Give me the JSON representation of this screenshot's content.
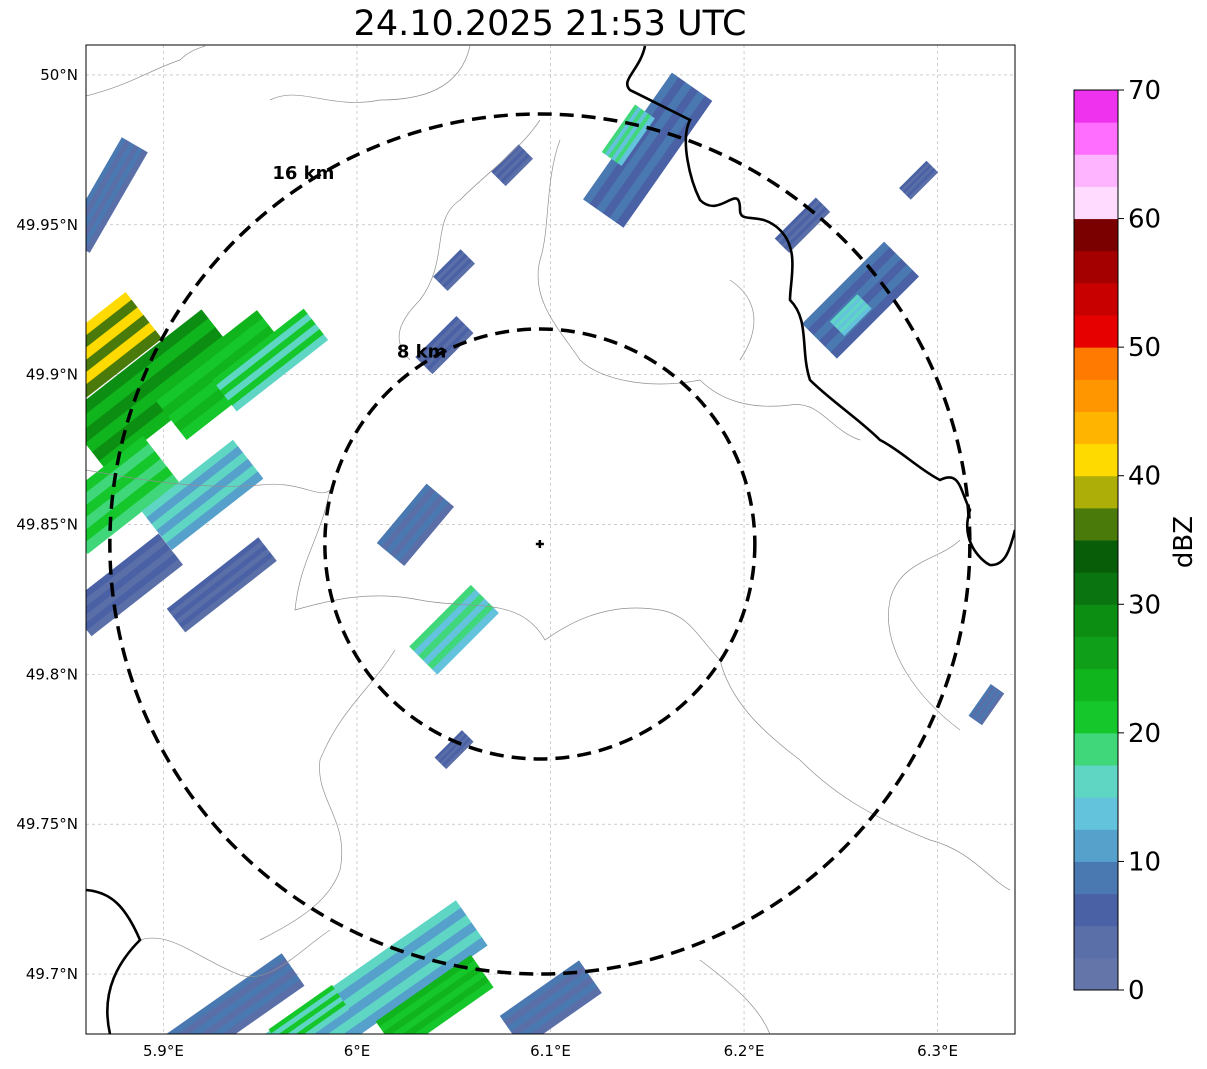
{
  "title": "24.10.2025 21:53 UTC",
  "map": {
    "lon_range": [
      5.86,
      6.34
    ],
    "lat_range": [
      49.68,
      50.01
    ],
    "x_ticks": [
      {
        "value": 5.9,
        "label": "5.9°E"
      },
      {
        "value": 6.0,
        "label": "6°E"
      },
      {
        "value": 6.1,
        "label": "6.1°E"
      },
      {
        "value": 6.2,
        "label": "6.2°E"
      },
      {
        "value": 6.3,
        "label": "6.3°E"
      }
    ],
    "y_ticks": [
      {
        "value": 50.0,
        "label": "50°N"
      },
      {
        "value": 49.95,
        "label": "49.95°N"
      },
      {
        "value": 49.9,
        "label": "49.9°N"
      },
      {
        "value": 49.85,
        "label": "49.85°N"
      },
      {
        "value": 49.8,
        "label": "49.8°N"
      },
      {
        "value": 49.75,
        "label": "49.75°N"
      },
      {
        "value": 49.7,
        "label": "49.7°N"
      }
    ],
    "grid": true,
    "center": {
      "lon": 6.0945,
      "lat": 49.8435
    },
    "range_rings": [
      {
        "label": "8 km"
      },
      {
        "label": "16 km"
      }
    ]
  },
  "colorbar": {
    "label": "dBZ",
    "min": 0,
    "max": 70,
    "tick_values": [
      0,
      10,
      20,
      30,
      40,
      50,
      60,
      70
    ],
    "colors": [
      "#6475aa",
      "#5a6ea8",
      "#4a62a5",
      "#4a78b0",
      "#56a0cc",
      "#64c3dc",
      "#5fd6c4",
      "#3fd77a",
      "#16c72c",
      "#10b41c",
      "#109f18",
      "#0c8e13",
      "#0a7410",
      "#085d08",
      "#4a7a0a",
      "#aeae08",
      "#ffda00",
      "#ffb400",
      "#ff9600",
      "#ff7a00",
      "#e60000",
      "#c80000",
      "#a50000",
      "#7a0000",
      "#ffdcff",
      "#ffb4ff",
      "#ff6eff",
      "#ee32ee"
    ]
  },
  "echo_cells": [
    {
      "name": "west-cluster-1",
      "lon": 5.895,
      "lat": 49.895,
      "angle": -38,
      "len": 0.09,
      "w": 0.035,
      "dbz": 26
    },
    {
      "name": "west-cluster-2",
      "lon": 5.93,
      "lat": 49.9,
      "angle": -38,
      "len": 0.07,
      "w": 0.03,
      "dbz": 22
    },
    {
      "name": "west-cluster-3",
      "lon": 5.87,
      "lat": 49.91,
      "angle": -38,
      "len": 0.05,
      "w": 0.03,
      "dbz": 38
    },
    {
      "name": "west-cluster-4",
      "lon": 5.875,
      "lat": 49.86,
      "angle": -38,
      "len": 0.06,
      "w": 0.03,
      "dbz": 20
    },
    {
      "name": "west-cluster-5",
      "lon": 5.92,
      "lat": 49.86,
      "angle": -38,
      "len": 0.06,
      "w": 0.025,
      "dbz": 14
    },
    {
      "name": "west-cluster-6",
      "lon": 5.88,
      "lat": 49.83,
      "angle": -38,
      "len": 0.06,
      "w": 0.02,
      "dbz": 5
    },
    {
      "name": "west-cluster-7",
      "lon": 5.93,
      "lat": 49.83,
      "angle": -38,
      "len": 0.06,
      "w": 0.015,
      "dbz": 5
    },
    {
      "name": "west-cluster-8",
      "lon": 5.87,
      "lat": 49.96,
      "angle": -60,
      "len": 0.06,
      "w": 0.015,
      "dbz": 6
    },
    {
      "name": "west-cluster-9",
      "lon": 5.955,
      "lat": 49.905,
      "angle": -38,
      "len": 0.06,
      "w": 0.02,
      "dbz": 18
    },
    {
      "name": "central-cell-1",
      "lon": 6.03,
      "lat": 49.85,
      "angle": -50,
      "len": 0.04,
      "w": 0.018,
      "dbz": 6
    },
    {
      "name": "central-cell-2",
      "lon": 6.05,
      "lat": 49.815,
      "angle": -45,
      "len": 0.045,
      "w": 0.02,
      "dbz": 16
    },
    {
      "name": "central-cell-3",
      "lon": 6.045,
      "lat": 49.91,
      "angle": -45,
      "len": 0.03,
      "w": 0.012,
      "dbz": 5
    },
    {
      "name": "central-cell-4",
      "lon": 6.05,
      "lat": 49.935,
      "angle": -45,
      "len": 0.02,
      "w": 0.01,
      "dbz": 5
    },
    {
      "name": "central-cell-5",
      "lon": 6.05,
      "lat": 49.775,
      "angle": -45,
      "len": 0.02,
      "w": 0.008,
      "dbz": 5
    },
    {
      "name": "central-cell-6",
      "lon": 6.08,
      "lat": 49.97,
      "angle": -45,
      "len": 0.02,
      "w": 0.01,
      "dbz": 5
    },
    {
      "name": "ne-band-1",
      "lon": 6.15,
      "lat": 49.975,
      "angle": -55,
      "len": 0.08,
      "w": 0.025,
      "dbz": 7
    },
    {
      "name": "ne-band-2",
      "lon": 6.14,
      "lat": 49.98,
      "angle": -55,
      "len": 0.03,
      "w": 0.012,
      "dbz": 16
    },
    {
      "name": "ne-band-3",
      "lon": 6.26,
      "lat": 49.925,
      "angle": -45,
      "len": 0.06,
      "w": 0.025,
      "dbz": 7
    },
    {
      "name": "ne-band-4",
      "lon": 6.255,
      "lat": 49.92,
      "angle": -45,
      "len": 0.02,
      "w": 0.01,
      "dbz": 15
    },
    {
      "name": "ne-band-5",
      "lon": 6.23,
      "lat": 49.95,
      "angle": -45,
      "len": 0.03,
      "w": 0.01,
      "dbz": 5
    },
    {
      "name": "ne-band-6",
      "lon": 6.29,
      "lat": 49.965,
      "angle": -45,
      "len": 0.02,
      "w": 0.008,
      "dbz": 5
    },
    {
      "name": "east-cell-1",
      "lon": 6.325,
      "lat": 49.79,
      "angle": -55,
      "len": 0.02,
      "w": 0.008,
      "dbz": 6
    },
    {
      "name": "south-band-1",
      "lon": 6.01,
      "lat": 49.695,
      "angle": -35,
      "len": 0.12,
      "w": 0.028,
      "dbz": 14
    },
    {
      "name": "south-band-2",
      "lon": 6.04,
      "lat": 49.69,
      "angle": -35,
      "len": 0.06,
      "w": 0.02,
      "dbz": 22
    },
    {
      "name": "south-band-3",
      "lon": 5.93,
      "lat": 49.685,
      "angle": -35,
      "len": 0.09,
      "w": 0.02,
      "dbz": 6
    },
    {
      "name": "south-band-4",
      "lon": 6.1,
      "lat": 49.69,
      "angle": -35,
      "len": 0.05,
      "w": 0.02,
      "dbz": 6
    },
    {
      "name": "south-band-5",
      "lon": 5.975,
      "lat": 49.685,
      "angle": -35,
      "len": 0.04,
      "w": 0.015,
      "dbz": 18
    }
  ]
}
